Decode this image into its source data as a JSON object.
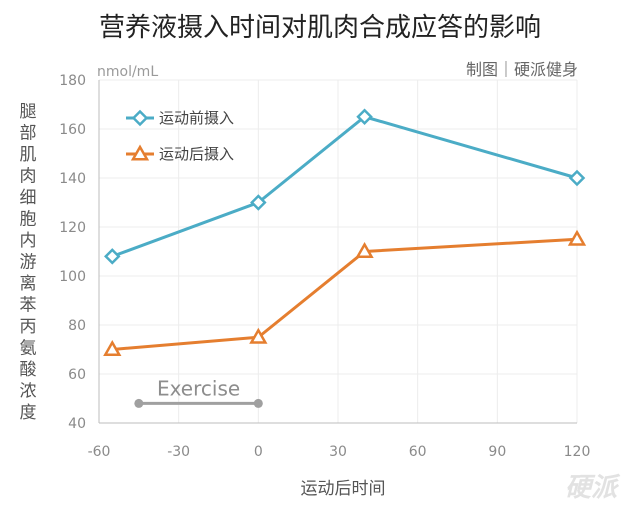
{
  "chart_data": {
    "type": "line",
    "title": "营养液摄入时间对肌肉合成应答的影响",
    "unit": "nmol/mL",
    "credit": "制图｜硬派健身",
    "xlabel": "运动后时间",
    "ylabel": "腿部肌肉细胞内游离苯丙氨酸浓度",
    "xlim": [
      -60,
      120
    ],
    "ylim": [
      40,
      180
    ],
    "x_ticks": [
      -60,
      -30,
      0,
      30,
      60,
      90,
      120
    ],
    "y_ticks": [
      40,
      60,
      80,
      100,
      120,
      140,
      160,
      180
    ],
    "grid": true,
    "legend_position": "top-left",
    "series": [
      {
        "name": "运动前摄入",
        "color": "#4bacc6",
        "marker": "diamond",
        "x": [
          -55,
          0,
          40,
          120
        ],
        "values": [
          108,
          130,
          165,
          140
        ]
      },
      {
        "name": "运动后摄入",
        "color": "#e57e2f",
        "marker": "triangle",
        "x": [
          -55,
          0,
          40,
          120
        ],
        "values": [
          70,
          75,
          110,
          115
        ]
      }
    ],
    "annotation": {
      "text": "Exercise",
      "x_range": [
        -45,
        0
      ],
      "y": 48,
      "color": "#a0a0a0"
    }
  },
  "watermark": "硬派"
}
